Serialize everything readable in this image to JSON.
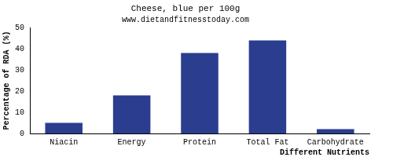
{
  "chart_data": {
    "type": "bar",
    "title": "Cheese, blue per 100g",
    "subtitle": "www.dietandfitnesstoday.com",
    "x_label": "Different Nutrients",
    "y_label": "Percentage of RDA (%)",
    "categories": [
      "Niacin",
      "Energy",
      "Protein",
      "Total Fat",
      "Carbohydrate"
    ],
    "values": [
      5,
      18,
      38,
      44,
      2
    ],
    "color": "#2b3d8f",
    "ylim": [
      0,
      50
    ],
    "yticks": [
      0,
      10,
      20,
      30,
      40,
      50
    ],
    "grid": false
  }
}
